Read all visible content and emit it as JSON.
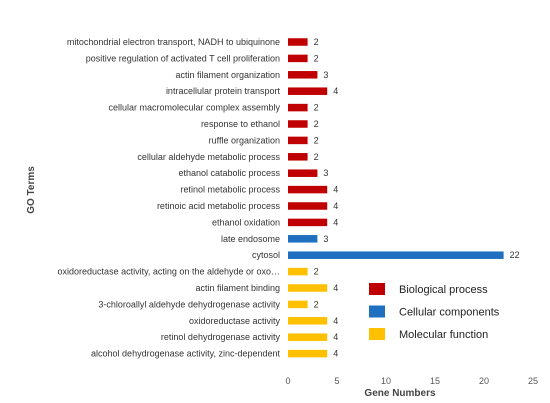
{
  "chart_data": {
    "type": "bar",
    "orientation": "horizontal",
    "xlabel": "Gene Numbers",
    "ylabel": "GO Terms",
    "xlim": [
      0,
      25
    ],
    "xticks": [
      0,
      5,
      10,
      15,
      20,
      25
    ],
    "grid": false,
    "legend_position": "bottom-right",
    "categories": [
      "mitochondrial electron transport, NADH to ubiquinone",
      "positive regulation of activated T cell proliferation",
      "actin filament organization",
      "intracellular protein transport",
      "cellular macromolecular complex assembly",
      "response to ethanol",
      "ruffle organization",
      "cellular aldehyde metabolic process",
      "ethanol catabolic process",
      "retinol metabolic process",
      "retinoic acid metabolic process",
      "ethanol oxidation",
      "late endosome",
      "cytosol",
      "oxidoreductase activity, acting on the aldehyde or oxo…",
      "actin filament binding",
      "3-chloroallyl aldehyde dehydrogenase activity",
      "oxidoreductase activity",
      "retinol dehydrogenase activity",
      "alcohol dehydrogenase activity, zinc-dependent"
    ],
    "values": [
      2,
      2,
      3,
      4,
      2,
      2,
      2,
      2,
      3,
      4,
      4,
      4,
      3,
      22,
      2,
      4,
      2,
      4,
      4,
      4
    ],
    "groups": [
      "Biological process",
      "Biological process",
      "Biological process",
      "Biological process",
      "Biological process",
      "Biological process",
      "Biological process",
      "Biological process",
      "Biological process",
      "Biological process",
      "Biological process",
      "Biological process",
      "Cellular components",
      "Cellular components",
      "Molecular function",
      "Molecular function",
      "Molecular function",
      "Molecular function",
      "Molecular function",
      "Molecular function"
    ],
    "legend": [
      {
        "name": "Biological process",
        "color": "#C00000"
      },
      {
        "name": "Cellular components",
        "color": "#1F6FC0"
      },
      {
        "name": "Molecular function",
        "color": "#FFC000"
      }
    ]
  }
}
